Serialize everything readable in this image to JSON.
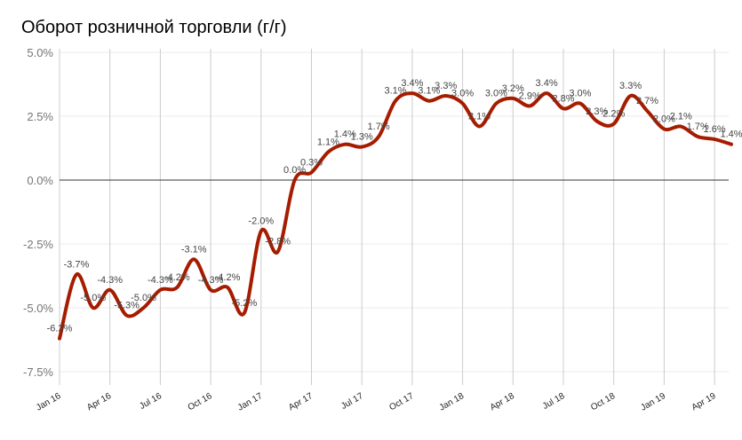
{
  "chart_data": {
    "type": "line",
    "title": "Оборот розничной торговли (г/г)",
    "xlabel": "",
    "ylabel": "",
    "ylim": [
      -7.5,
      5.0
    ],
    "y_ticks": [
      "5.0%",
      "2.5%",
      "0.0%",
      "-2.5%",
      "-5.0%",
      "-7.5%"
    ],
    "y_tick_values": [
      5.0,
      2.5,
      0.0,
      -2.5,
      -5.0,
      -7.5
    ],
    "x_ticks": [
      "Jan 16",
      "Apr 16",
      "Jul 16",
      "Oct 16",
      "Jan 17",
      "Apr 17",
      "Jul 17",
      "Oct 17",
      "Jan 18",
      "Apr 18",
      "Jul 18",
      "Oct 18",
      "Jan 19",
      "Apr 19"
    ],
    "grid": true,
    "line_color": "#a61c00",
    "x": [
      "Jan 16",
      "Feb 16",
      "Mar 16",
      "Apr 16",
      "May 16",
      "Jun 16",
      "Jul 16",
      "Aug 16",
      "Sep 16",
      "Oct 16",
      "Nov 16",
      "Dec 16",
      "Jan 17",
      "Feb 17",
      "Mar 17",
      "Apr 17",
      "May 17",
      "Jun 17",
      "Jul 17",
      "Aug 17",
      "Sep 17",
      "Oct 17",
      "Nov 17",
      "Dec 17",
      "Jan 18",
      "Feb 18",
      "Mar 18",
      "Apr 18",
      "May 18",
      "Jun 18",
      "Jul 18",
      "Aug 18",
      "Sep 18",
      "Oct 18",
      "Nov 18",
      "Dec 18",
      "Jan 19",
      "Feb 19",
      "Mar 19",
      "Apr 19",
      "May 19"
    ],
    "values": [
      -6.2,
      -3.7,
      -5.0,
      -4.3,
      -5.3,
      -5.0,
      -4.3,
      -4.2,
      -3.1,
      -4.3,
      -4.2,
      -5.2,
      -2.0,
      -2.8,
      0.0,
      0.3,
      1.1,
      1.4,
      1.3,
      1.7,
      3.1,
      3.4,
      3.1,
      3.3,
      3.0,
      2.1,
      3.0,
      3.2,
      2.9,
      3.4,
      2.8,
      3.0,
      2.3,
      2.2,
      3.3,
      2.7,
      2.0,
      2.1,
      1.7,
      1.6,
      1.4
    ],
    "labels": [
      "-6.2%",
      "-3.7%",
      "-5.0%",
      "-4.3%",
      "-5.3%",
      "-5.0%",
      "-4.3%",
      "-4.2%",
      "-3.1%",
      "-4.3%",
      "-4.2%",
      "-5.2%",
      "-2.0%",
      "-2.8%",
      "0.0%",
      "0.3%",
      "1.1%",
      "1.4%",
      "1.3%",
      "1.7%",
      "3.1%",
      "3.4%",
      "3.1%",
      "3.3%",
      "3.0%",
      "2.1%",
      "3.0%",
      "3.2%",
      "2.9%",
      "3.4%",
      "2.8%",
      "3.0%",
      "2.3%",
      "2.2%",
      "3.3%",
      "2.7%",
      "2.0%",
      "2.1%",
      "1.7%",
      "1.6%",
      "1.4%"
    ]
  }
}
